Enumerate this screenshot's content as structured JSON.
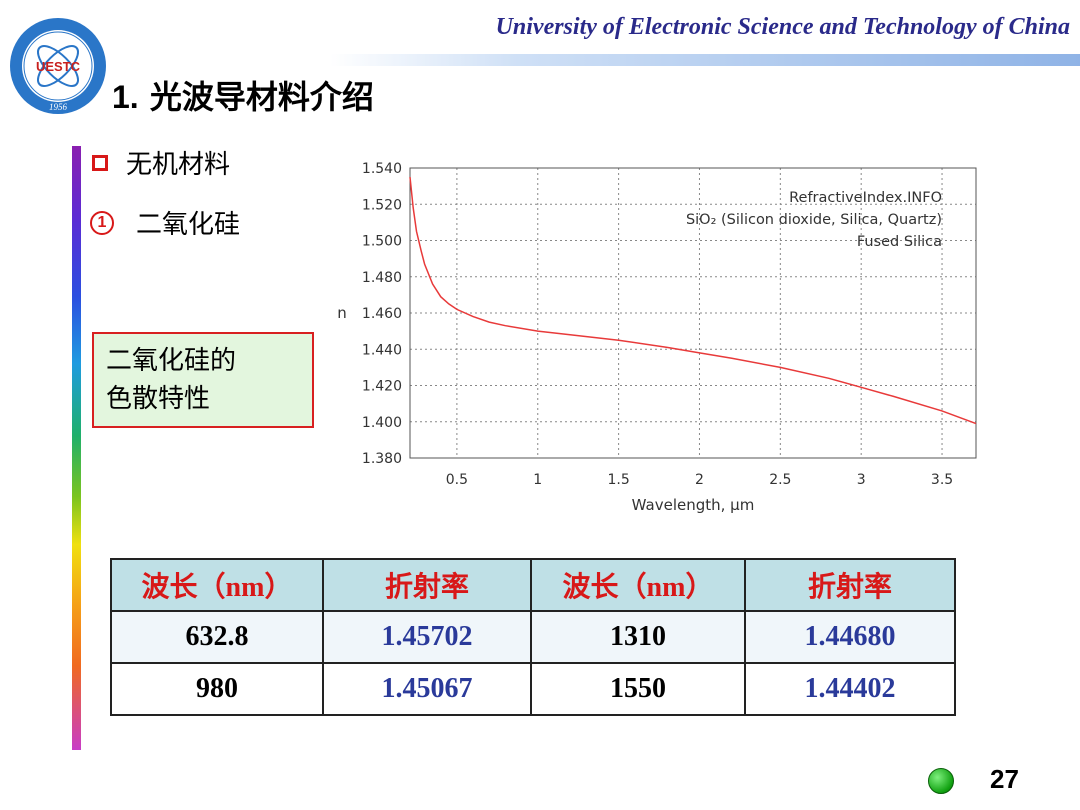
{
  "header": {
    "university": "University of Electronic Science and Technology of China",
    "logo": {
      "letters": "UESTC",
      "year": "1956",
      "accent": "#2a76c8"
    }
  },
  "title": {
    "number": "1.",
    "text": "光波导材料介绍"
  },
  "bullets": [
    {
      "icon": "square-bullet-icon",
      "text": "无机材料"
    },
    {
      "icon": "circled-number-icon",
      "marker": "1",
      "text": "二氧化硅"
    }
  ],
  "note": {
    "line1": "二氧化硅的",
    "line2": "色散特性"
  },
  "chart_data": {
    "type": "line",
    "xlabel": "Wavelength, µm",
    "ylabel": "n",
    "xlim": [
      0.21,
      3.71
    ],
    "ylim": [
      1.38,
      1.54
    ],
    "xticks": [
      "0.5",
      "1",
      "1.5",
      "2",
      "2.5",
      "3",
      "3.5"
    ],
    "yticks": [
      "1.540",
      "1.520",
      "1.500",
      "1.480",
      "1.460",
      "1.440",
      "1.420",
      "1.400",
      "1.380"
    ],
    "grid": true,
    "annotations": [
      "RefractiveIndex.INFO",
      "SiO₂ (Silicon dioxide, Silica, Quartz)",
      "Fused Silica"
    ],
    "line_color": "#e83a3a",
    "series": [
      {
        "x": [
          0.21,
          0.23,
          0.25,
          0.28,
          0.3,
          0.35,
          0.4,
          0.45,
          0.5,
          0.6,
          0.7,
          0.8,
          1.0,
          1.2,
          1.5,
          1.8,
          2.0,
          2.2,
          2.5,
          2.8,
          3.0,
          3.2,
          3.5,
          3.71
        ],
        "y": [
          1.535,
          1.518,
          1.505,
          1.494,
          1.487,
          1.476,
          1.469,
          1.465,
          1.462,
          1.458,
          1.455,
          1.453,
          1.45,
          1.448,
          1.445,
          1.441,
          1.438,
          1.435,
          1.43,
          1.424,
          1.419,
          1.414,
          1.406,
          1.399
        ]
      }
    ]
  },
  "table": {
    "headers": [
      "波长（nm）",
      "折射率",
      "波长（nm）",
      "折射率"
    ],
    "rows": [
      [
        "632.8",
        "1.45702",
        "1310",
        "1.44680"
      ],
      [
        "980",
        "1.45067",
        "1550",
        "1.44402"
      ]
    ]
  },
  "footer": {
    "page_number": "27"
  }
}
